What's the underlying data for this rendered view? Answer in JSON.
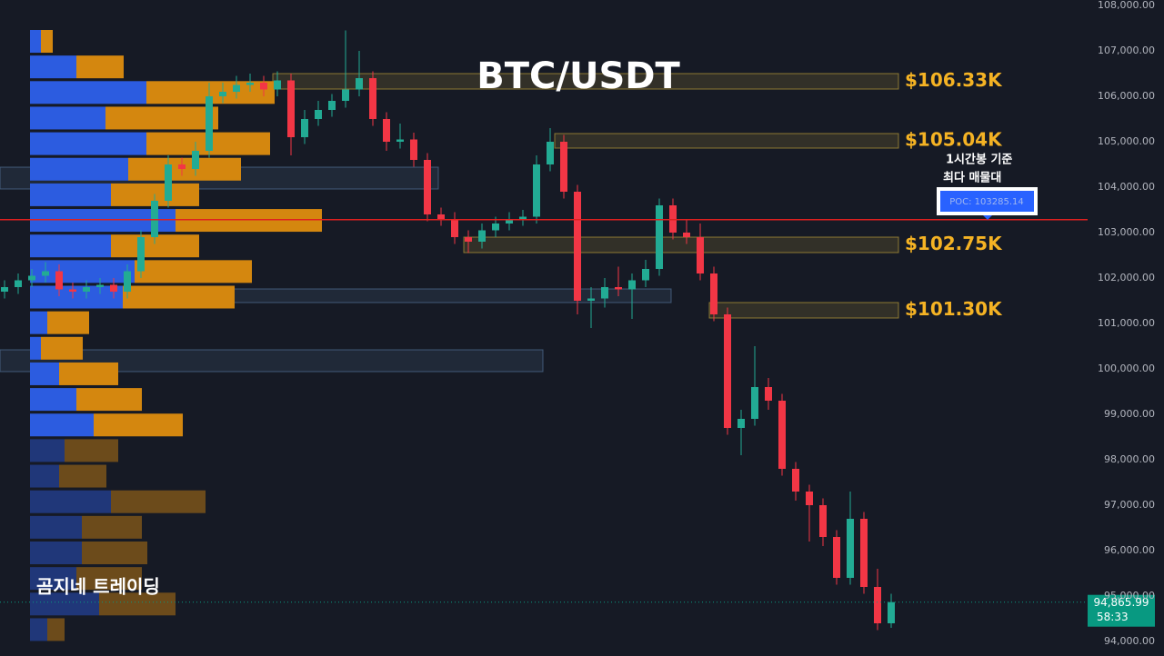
{
  "chart_data": {
    "type": "candlestick",
    "title": "BTC/USDT",
    "watermark": "곰지네 트레이딩",
    "annotation": [
      "1시간봉 기준",
      "최다 매물대"
    ],
    "ylim": [
      94000,
      108000
    ],
    "yticks": [
      {
        "value": 94000,
        "label": "94,000.00"
      },
      {
        "value": 95000,
        "label": "95,000.00"
      },
      {
        "value": 96000,
        "label": "96,000.00"
      },
      {
        "value": 97000,
        "label": "97,000.00"
      },
      {
        "value": 98000,
        "label": "98,000.00"
      },
      {
        "value": 99000,
        "label": "99,000.00"
      },
      {
        "value": 100000,
        "label": "100,000.00"
      },
      {
        "value": 101000,
        "label": "101,000.00"
      },
      {
        "value": 102000,
        "label": "102,000.00"
      },
      {
        "value": 103000,
        "label": "103,000.00"
      },
      {
        "value": 104000,
        "label": "104,000.00"
      },
      {
        "value": 105000,
        "label": "105,000.00"
      },
      {
        "value": 106000,
        "label": "106,000.00"
      },
      {
        "value": 107000,
        "label": "107,000.00"
      },
      {
        "value": 108000,
        "label": "108,000.00"
      }
    ],
    "grid": false,
    "up_color": "#22ab94",
    "down_color": "#f23645",
    "open": [
      101700,
      101800,
      101950,
      102050,
      102150,
      101750,
      101700,
      101800,
      101850,
      101700,
      102150,
      102900,
      103700,
      104500,
      104400,
      104800,
      106000,
      106100,
      106250,
      106300,
      106150,
      106350,
      105100,
      105500,
      105700,
      105900,
      106150,
      106400,
      105500,
      105000,
      105050,
      104600,
      103400,
      103300,
      102900,
      102800,
      103050,
      103200,
      103300,
      103350,
      104500,
      105000,
      103900,
      101500,
      101550,
      101800,
      101750,
      101950,
      102200,
      103600,
      103000,
      102900,
      102100,
      101200,
      98700,
      98900,
      99600,
      99300,
      97800,
      97300,
      97000,
      96300,
      95400,
      96700,
      95200,
      94400
    ],
    "high": [
      101950,
      102100,
      102200,
      102350,
      102300,
      101900,
      101950,
      102000,
      102000,
      102300,
      103050,
      103850,
      104700,
      104650,
      105000,
      106300,
      106300,
      106450,
      106500,
      106450,
      106550,
      106500,
      105700,
      105900,
      106050,
      107450,
      107000,
      106550,
      105650,
      105400,
      105200,
      104750,
      103550,
      103450,
      103050,
      103200,
      103350,
      103450,
      103500,
      104700,
      105300,
      105150,
      104050,
      101800,
      102000,
      102250,
      102100,
      102400,
      103750,
      103750,
      103300,
      103200,
      102250,
      101350,
      99100,
      100500,
      99800,
      99450,
      97950,
      97450,
      97150,
      96450,
      97300,
      96850,
      95600,
      95050
    ],
    "low": [
      101550,
      101650,
      101800,
      101900,
      101600,
      101550,
      101550,
      101650,
      101550,
      101550,
      102000,
      102750,
      103550,
      104250,
      104250,
      104650,
      105850,
      105950,
      106100,
      106000,
      106000,
      104700,
      104950,
      105350,
      105550,
      105750,
      106000,
      105350,
      104800,
      104850,
      104450,
      103250,
      103150,
      102750,
      102550,
      102650,
      102900,
      103050,
      103150,
      103200,
      104350,
      103750,
      101200,
      100900,
      101350,
      101600,
      101100,
      101800,
      102050,
      102850,
      102750,
      101950,
      101050,
      98550,
      98100,
      98750,
      99100,
      97650,
      97100,
      96200,
      96100,
      95250,
      95250,
      95050,
      94250,
      94300
    ],
    "close": [
      101800,
      101950,
      102050,
      102150,
      101750,
      101700,
      101800,
      101850,
      101700,
      102150,
      102900,
      103700,
      104500,
      104400,
      104800,
      106000,
      106100,
      106250,
      106300,
      106150,
      106350,
      105100,
      105500,
      105700,
      105900,
      106150,
      106400,
      105500,
      105000,
      105050,
      104600,
      103400,
      103300,
      102900,
      102800,
      103050,
      103200,
      103300,
      103350,
      104500,
      105000,
      103900,
      101500,
      101550,
      101800,
      101750,
      101950,
      102200,
      103600,
      103000,
      102900,
      102100,
      101200,
      98700,
      98900,
      99600,
      99300,
      97800,
      97300,
      97000,
      96300,
      95400,
      96700,
      95200,
      94400,
      94866
    ],
    "profile": {
      "price": [
        107210,
        106647,
        106084,
        105521,
        104958,
        104395,
        103832,
        103269,
        102706,
        102143,
        101580,
        101017,
        100454,
        99891,
        99328,
        98765,
        98202,
        97639,
        97076,
        96513,
        95950,
        95387,
        94824,
        94261
      ],
      "buy": [
        12,
        51,
        128,
        83,
        128,
        108,
        89,
        160,
        89,
        115,
        102,
        19,
        12,
        32,
        51,
        70,
        38,
        32,
        89,
        57,
        57,
        51,
        76,
        19
      ],
      "sell": [
        13,
        52,
        141,
        124,
        136,
        124,
        97,
        161,
        97,
        129,
        123,
        46,
        46,
        65,
        72,
        98,
        59,
        52,
        104,
        66,
        72,
        72,
        84,
        19
      ],
      "faded": [
        false,
        false,
        false,
        false,
        false,
        false,
        false,
        false,
        false,
        false,
        false,
        false,
        false,
        false,
        false,
        false,
        true,
        true,
        true,
        true,
        true,
        true,
        true,
        true
      ],
      "buy_color": "#2c5ce0",
      "sell_color": "#d4870f"
    },
    "zones": [
      {
        "low": 106160,
        "high": 106500,
        "label": "$106.33K",
        "color": "#d4b13a"
      },
      {
        "low": 104860,
        "high": 105180,
        "label": "$105.04K",
        "color": "#d4b13a"
      },
      {
        "low": 102560,
        "high": 102900,
        "label": "$102.75K",
        "color": "#d4b13a"
      },
      {
        "low": 101120,
        "high": 101460,
        "label": "$101.30K",
        "color": "#d4b13a"
      },
      {
        "low": 103960,
        "high": 104440,
        "color": "#5b7fa8"
      },
      {
        "low": 101460,
        "high": 101760,
        "color": "#5b7fa8"
      },
      {
        "low": 99940,
        "high": 100420,
        "color": "#5b7fa8"
      }
    ],
    "poc": 103285.14,
    "poc_label": "POC: 103285.14",
    "poc_color": "#e0201f",
    "last_price": 94865.99,
    "last_price_label": "94,865.99",
    "countdown": "58:33",
    "last_color": "#089981"
  }
}
